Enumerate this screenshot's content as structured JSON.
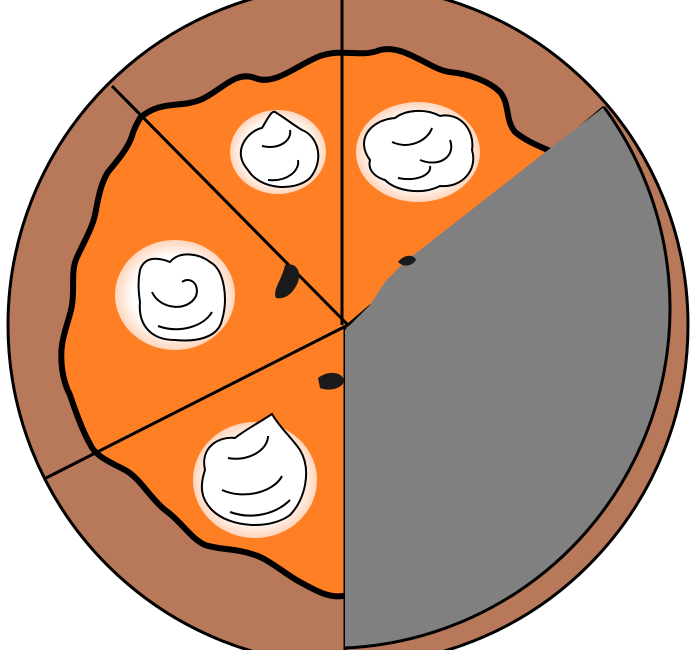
{
  "pie": {
    "total_slices": 6,
    "remaining_slices": 4,
    "eaten_slices": 2,
    "colors": {
      "crust": "#b8785a",
      "filling": "#ff7f25",
      "cream": "#ffffff",
      "cream_glow": "#ffd5bb",
      "eaten_area": "#808080",
      "outline": "#000000",
      "background": "#ffffff"
    },
    "slices": [
      {
        "position": "top-left",
        "state": "remaining",
        "topping": "whipped-cream"
      },
      {
        "position": "top-right",
        "state": "remaining",
        "topping": "whipped-cream"
      },
      {
        "position": "right-upper",
        "state": "eaten",
        "topping": "none"
      },
      {
        "position": "right-lower",
        "state": "eaten",
        "topping": "none"
      },
      {
        "position": "bottom-left",
        "state": "remaining",
        "topping": "whipped-cream"
      },
      {
        "position": "left",
        "state": "remaining",
        "topping": "whipped-cream"
      }
    ]
  }
}
